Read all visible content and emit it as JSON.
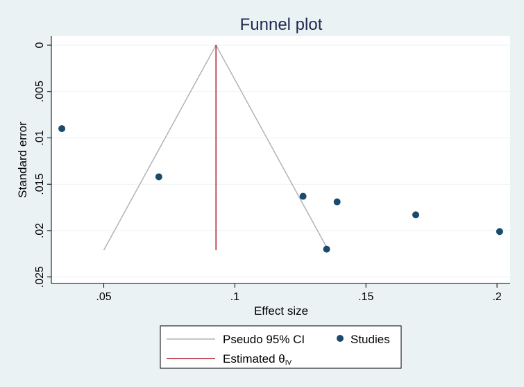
{
  "chart_data": {
    "type": "scatter",
    "title": "Funnel plot",
    "xlabel": "Effect size",
    "ylabel": "Standard error",
    "xlim": [
      0.03,
      0.205
    ],
    "ylim": [
      0,
      0.0257
    ],
    "y_reversed": true,
    "xticks": [
      {
        "value": 0.05,
        "label": ".05"
      },
      {
        "value": 0.1,
        "label": ".1"
      },
      {
        "value": 0.15,
        "label": ".15"
      },
      {
        "value": 0.2,
        "label": ".2"
      }
    ],
    "yticks": [
      {
        "value": 0,
        "label": "0"
      },
      {
        "value": 0.005,
        "label": ".005"
      },
      {
        "value": 0.01,
        "label": ".01"
      },
      {
        "value": 0.015,
        "label": ".015"
      },
      {
        "value": 0.02,
        "label": ".02"
      },
      {
        "value": 0.025,
        "label": ".025"
      }
    ],
    "grid": true,
    "series": [
      {
        "name": "Studies",
        "marker": "circle",
        "color": "#1a4a6e",
        "points": [
          {
            "x": 0.034,
            "y": 0.009
          },
          {
            "x": 0.071,
            "y": 0.0142
          },
          {
            "x": 0.126,
            "y": 0.0163
          },
          {
            "x": 0.139,
            "y": 0.0169
          },
          {
            "x": 0.169,
            "y": 0.0183
          },
          {
            "x": 0.201,
            "y": 0.0201
          },
          {
            "x": 0.135,
            "y": 0.022
          }
        ]
      },
      {
        "name": "Pseudo 95% CI",
        "type": "line",
        "color": "#b3b3b3",
        "points": [
          {
            "x": 0.05,
            "y": 0.0221
          },
          {
            "x": 0.0928,
            "y": 0
          },
          {
            "x": 0.1356,
            "y": 0.0221
          }
        ]
      },
      {
        "name": "Estimated θ",
        "name_subscript": "IV",
        "type": "line",
        "color": "#b01c2e",
        "points": [
          {
            "x": 0.0928,
            "y": 0
          },
          {
            "x": 0.0928,
            "y": 0.0221
          }
        ]
      }
    ],
    "legend": {
      "placement": "bottom",
      "entries": [
        {
          "label": "Pseudo 95% CI",
          "kind": "line",
          "color": "#b3b3b3"
        },
        {
          "label": "Studies",
          "kind": "marker",
          "color": "#1a4a6e"
        },
        {
          "label": "Estimated θ",
          "subscript": "IV",
          "kind": "line",
          "color": "#b01c2e"
        }
      ]
    },
    "colors": {
      "background": "#eaf2f3",
      "plot_background": "#ffffff",
      "grid": "#eaf2f3",
      "title": "#1e2a50"
    }
  }
}
